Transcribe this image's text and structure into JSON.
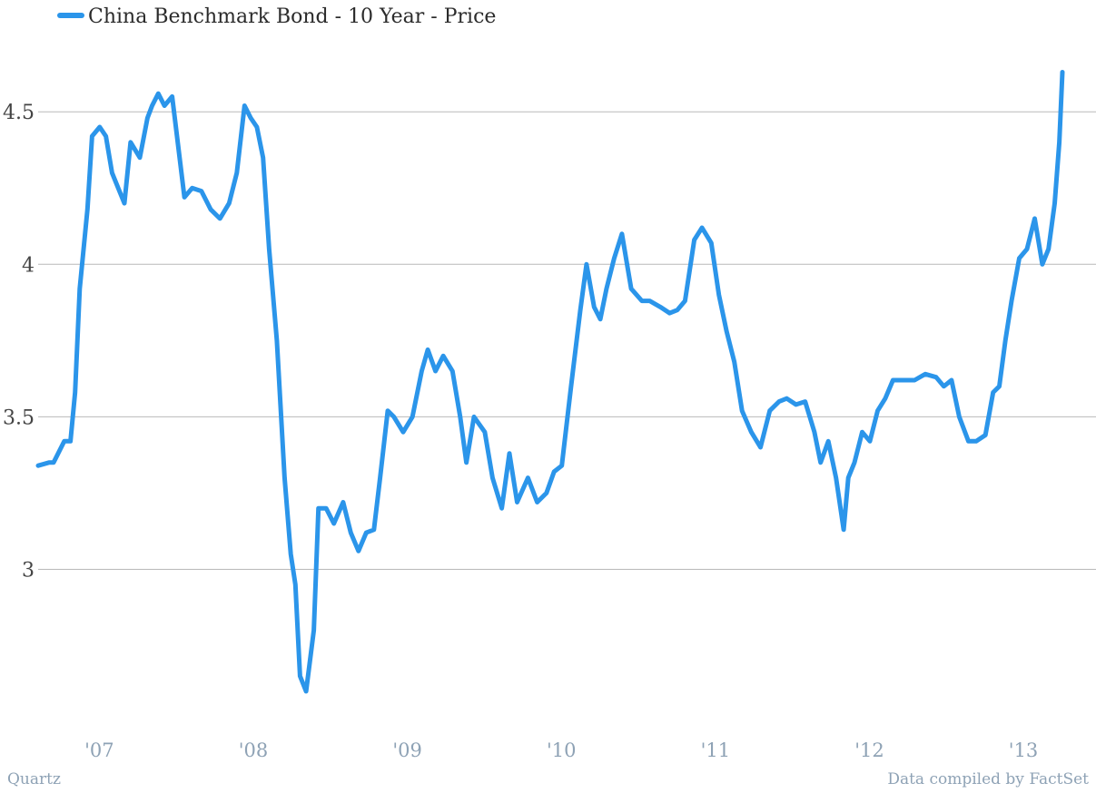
{
  "chart_data": {
    "type": "line",
    "title": "",
    "xlabel": "",
    "ylabel": "",
    "ylim": [
      2.57,
      4.7
    ],
    "x_ticks": [
      "'07",
      "'08",
      "'09",
      "'10",
      "'11",
      "'12",
      "'13"
    ],
    "y_ticks": [
      {
        "value": 4.5,
        "label": "4.5"
      },
      {
        "value": 4.0,
        "label": "4"
      },
      {
        "value": 3.5,
        "label": "3.5"
      },
      {
        "value": 3.0,
        "label": "3"
      }
    ],
    "grid": true,
    "legend_position": "top-left",
    "series": [
      {
        "name": "China Benchmark Bond - 10 Year - Price",
        "color": "#2b95ea",
        "x": [
          2006.78,
          2006.85,
          2006.88,
          2006.95,
          2006.99,
          2007.02,
          2007.05,
          2007.1,
          2007.13,
          2007.18,
          2007.22,
          2007.26,
          2007.3,
          2007.34,
          2007.38,
          2007.44,
          2007.49,
          2007.52,
          2007.56,
          2007.6,
          2007.65,
          2007.73,
          2007.78,
          2007.84,
          2007.9,
          2007.96,
          2008.02,
          2008.07,
          2008.12,
          2008.16,
          2008.2,
          2008.24,
          2008.28,
          2008.33,
          2008.38,
          2008.42,
          2008.45,
          2008.48,
          2008.52,
          2008.57,
          2008.6,
          2008.65,
          2008.7,
          2008.76,
          2008.81,
          2008.86,
          2008.91,
          2008.96,
          2009.0,
          2009.05,
          2009.09,
          2009.15,
          2009.21,
          2009.27,
          2009.31,
          2009.36,
          2009.41,
          2009.47,
          2009.52,
          2009.56,
          2009.61,
          2009.68,
          2009.73,
          2009.79,
          2009.84,
          2009.89,
          2009.96,
          2010.02,
          2010.08,
          2010.13,
          2010.18,
          2010.24,
          2010.3,
          2010.34,
          2010.39,
          2010.43,
          2010.47,
          2010.52,
          2010.57,
          2010.63,
          2010.7,
          2010.75,
          2010.82,
          2010.88,
          2010.93,
          2010.98,
          2011.04,
          2011.09,
          2011.15,
          2011.2,
          2011.25,
          2011.3,
          2011.35,
          2011.41,
          2011.47,
          2011.53,
          2011.59,
          2011.64,
          2011.7,
          2011.76,
          2011.82,
          2011.86,
          2011.91,
          2011.96,
          2012.01,
          2012.04,
          2012.08,
          2012.13,
          2012.18,
          2012.23,
          2012.28,
          2012.33,
          2012.4,
          2012.47,
          2012.54,
          2012.61,
          2012.66,
          2012.71,
          2012.76,
          2012.82,
          2012.87,
          2012.93,
          2012.98,
          2013.02,
          2013.06,
          2013.1,
          2013.15,
          2013.2,
          2013.25,
          2013.3,
          2013.34,
          2013.38,
          2013.41,
          2013.43
        ],
        "values": [
          3.34,
          3.35,
          3.35,
          3.42,
          3.42,
          3.58,
          3.92,
          4.18,
          4.42,
          4.45,
          4.42,
          4.3,
          4.25,
          4.2,
          4.4,
          4.35,
          4.48,
          4.52,
          4.56,
          4.52,
          4.55,
          4.22,
          4.25,
          4.24,
          4.18,
          4.15,
          4.2,
          4.3,
          4.52,
          4.48,
          4.45,
          4.35,
          4.05,
          3.75,
          3.3,
          3.05,
          2.95,
          2.65,
          2.6,
          2.8,
          3.2,
          3.2,
          3.15,
          3.22,
          3.12,
          3.06,
          3.12,
          3.13,
          3.3,
          3.52,
          3.5,
          3.45,
          3.5,
          3.65,
          3.72,
          3.65,
          3.7,
          3.65,
          3.5,
          3.35,
          3.5,
          3.45,
          3.3,
          3.2,
          3.38,
          3.22,
          3.3,
          3.22,
          3.25,
          3.32,
          3.34,
          3.6,
          3.85,
          4.0,
          3.86,
          3.82,
          3.92,
          4.02,
          4.1,
          3.92,
          3.88,
          3.88,
          3.86,
          3.84,
          3.85,
          3.88,
          4.08,
          4.12,
          4.07,
          3.9,
          3.78,
          3.68,
          3.52,
          3.45,
          3.4,
          3.52,
          3.55,
          3.56,
          3.54,
          3.55,
          3.45,
          3.35,
          3.42,
          3.3,
          3.13,
          3.3,
          3.35,
          3.45,
          3.42,
          3.52,
          3.56,
          3.62,
          3.62,
          3.62,
          3.64,
          3.63,
          3.6,
          3.62,
          3.5,
          3.42,
          3.42,
          3.44,
          3.58,
          3.6,
          3.75,
          3.88,
          4.02,
          4.05,
          4.15,
          4.0,
          4.05,
          4.2,
          4.4,
          4.63
        ]
      }
    ]
  },
  "footer": {
    "source_left": "Quartz",
    "source_right": "Data compiled by FactSet"
  }
}
